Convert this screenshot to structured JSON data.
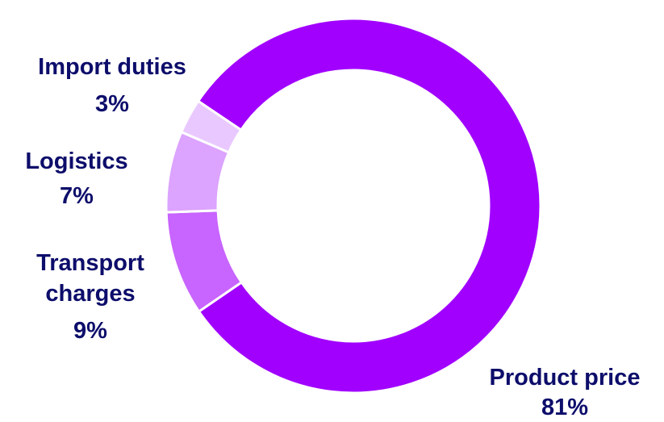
{
  "chart_data": {
    "type": "pie",
    "variant": "donut",
    "slices": [
      {
        "name": "Product price",
        "value": 81,
        "label": "81%",
        "color": "#A100FF"
      },
      {
        "name": "Transport charges",
        "value": 9,
        "label": "9%",
        "color": "#C864FF"
      },
      {
        "name": "Logistics",
        "value": 7,
        "label": "7%",
        "color": "#DCA3FF"
      },
      {
        "name": "Import duties",
        "value": 3,
        "label": "3%",
        "color": "#E9C8FF"
      }
    ],
    "label_color": "#0D0D6B",
    "separator_color": "#ffffff"
  }
}
